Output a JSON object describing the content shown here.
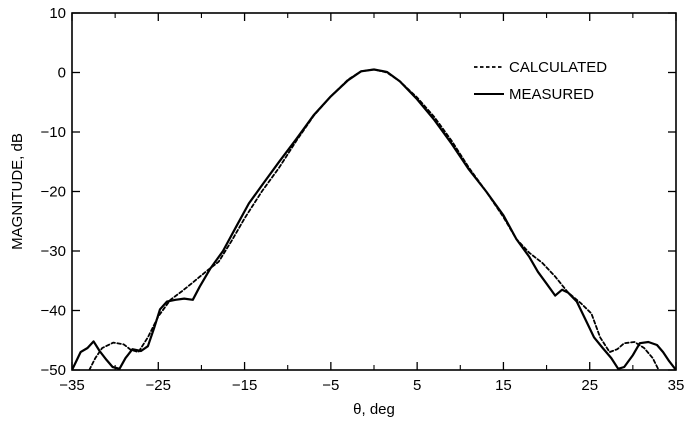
{
  "chart_data": {
    "type": "line",
    "xlabel": "θ, deg",
    "ylabel": "MAGNITUDE, dB",
    "xlim": [
      -35,
      35
    ],
    "ylim": [
      -50,
      10
    ],
    "xticks": [
      -35,
      -25,
      -15,
      -5,
      5,
      15,
      25,
      35
    ],
    "yticks": [
      10,
      0,
      -10,
      -20,
      -30,
      -40,
      -50
    ],
    "grid": false,
    "legend_position": "top-right",
    "series": [
      {
        "name": "CALCULATED",
        "style": "dashed",
        "color": "#000000",
        "points": [
          [
            -33.0,
            -50.0
          ],
          [
            -32.3,
            -48.0
          ],
          [
            -31.5,
            -46.3
          ],
          [
            -30.2,
            -45.4
          ],
          [
            -29.0,
            -45.7
          ],
          [
            -28.2,
            -46.6
          ],
          [
            -27.3,
            -47.0
          ],
          [
            -26.2,
            -44.5
          ],
          [
            -25.0,
            -41.0
          ],
          [
            -23.6,
            -38.2
          ],
          [
            -22.3,
            -36.8
          ],
          [
            -21.0,
            -35.3
          ],
          [
            -19.5,
            -33.5
          ],
          [
            -18.0,
            -31.8
          ],
          [
            -16.5,
            -28.3
          ],
          [
            -15.0,
            -24.5
          ],
          [
            -13.0,
            -20.0
          ],
          [
            -11.0,
            -16.0
          ],
          [
            -9.0,
            -11.5
          ],
          [
            -7.0,
            -7.3
          ],
          [
            -5.0,
            -4.0
          ],
          [
            -3.0,
            -1.2
          ],
          [
            -1.5,
            0.2
          ],
          [
            0.0,
            0.5
          ],
          [
            1.5,
            0.0
          ],
          [
            3.0,
            -1.5
          ],
          [
            5.0,
            -4.2
          ],
          [
            7.0,
            -7.5
          ],
          [
            9.0,
            -11.5
          ],
          [
            11.0,
            -16.0
          ],
          [
            13.0,
            -20.0
          ],
          [
            15.0,
            -24.3
          ],
          [
            16.5,
            -28.0
          ],
          [
            18.0,
            -30.3
          ],
          [
            19.5,
            -32.0
          ],
          [
            21.0,
            -34.3
          ],
          [
            22.5,
            -37.0
          ],
          [
            24.0,
            -38.8
          ],
          [
            25.2,
            -40.5
          ],
          [
            26.2,
            -44.5
          ],
          [
            27.3,
            -47.0
          ],
          [
            28.2,
            -46.5
          ],
          [
            29.0,
            -45.5
          ],
          [
            30.2,
            -45.3
          ],
          [
            31.3,
            -46.3
          ],
          [
            32.3,
            -48.0
          ],
          [
            33.0,
            -50.0
          ]
        ]
      },
      {
        "name": "MEASURED",
        "style": "solid",
        "color": "#000000",
        "points": [
          [
            -35.0,
            -50.0
          ],
          [
            -34.5,
            -48.5
          ],
          [
            -34.0,
            -47.0
          ],
          [
            -33.2,
            -46.3
          ],
          [
            -32.5,
            -45.2
          ],
          [
            -31.8,
            -46.8
          ],
          [
            -31.0,
            -48.3
          ],
          [
            -30.3,
            -49.5
          ],
          [
            -29.5,
            -49.8
          ],
          [
            -28.8,
            -48.0
          ],
          [
            -28.0,
            -46.5
          ],
          [
            -27.0,
            -46.8
          ],
          [
            -26.2,
            -46.0
          ],
          [
            -25.5,
            -43.0
          ],
          [
            -24.8,
            -39.8
          ],
          [
            -24.0,
            -38.5
          ],
          [
            -23.0,
            -38.2
          ],
          [
            -22.0,
            -38.0
          ],
          [
            -21.0,
            -38.2
          ],
          [
            -20.2,
            -36.0
          ],
          [
            -19.0,
            -33.0
          ],
          [
            -17.5,
            -30.0
          ],
          [
            -16.0,
            -26.0
          ],
          [
            -14.5,
            -22.0
          ],
          [
            -13.0,
            -19.0
          ],
          [
            -11.0,
            -15.0
          ],
          [
            -9.0,
            -11.2
          ],
          [
            -7.0,
            -7.2
          ],
          [
            -5.0,
            -4.0
          ],
          [
            -3.0,
            -1.3
          ],
          [
            -1.5,
            0.2
          ],
          [
            0.0,
            0.5
          ],
          [
            1.5,
            0.1
          ],
          [
            3.0,
            -1.5
          ],
          [
            5.0,
            -4.5
          ],
          [
            7.0,
            -8.0
          ],
          [
            9.0,
            -12.0
          ],
          [
            11.0,
            -16.3
          ],
          [
            13.0,
            -20.0
          ],
          [
            15.0,
            -24.0
          ],
          [
            16.5,
            -28.0
          ],
          [
            18.0,
            -31.0
          ],
          [
            19.0,
            -33.5
          ],
          [
            20.0,
            -35.5
          ],
          [
            21.0,
            -37.5
          ],
          [
            21.8,
            -36.5
          ],
          [
            22.5,
            -37.0
          ],
          [
            23.5,
            -38.5
          ],
          [
            24.5,
            -41.5
          ],
          [
            25.5,
            -44.5
          ],
          [
            26.5,
            -46.3
          ],
          [
            27.5,
            -48.0
          ],
          [
            28.3,
            -49.8
          ],
          [
            29.0,
            -49.5
          ],
          [
            30.0,
            -47.5
          ],
          [
            30.8,
            -45.5
          ],
          [
            31.8,
            -45.3
          ],
          [
            32.8,
            -45.8
          ],
          [
            33.5,
            -47.0
          ],
          [
            34.2,
            -48.5
          ],
          [
            35.0,
            -50.0
          ]
        ]
      }
    ]
  }
}
